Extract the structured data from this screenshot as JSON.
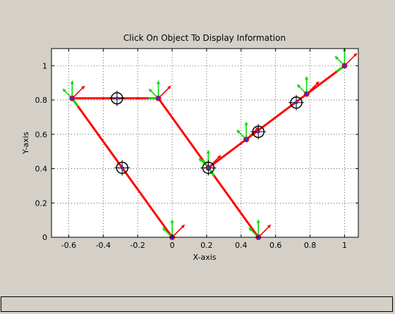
{
  "plot_title": "Click On Object To Display Information",
  "info_text": "",
  "chart_data": {
    "type": "line",
    "title": "Click On Object To Display Information",
    "xlabel": "X-axis",
    "ylabel": "Y-axis",
    "xlim": [
      -0.7,
      1.08
    ],
    "ylim": [
      0,
      1.1
    ],
    "xticks": [
      -0.6,
      -0.4,
      -0.2,
      0,
      0.2,
      0.4,
      0.6,
      0.8,
      1
    ],
    "yticks": [
      0,
      0.2,
      0.4,
      0.6,
      0.8,
      1
    ],
    "xtick_labels": [
      "-0.6",
      "-0.4",
      "-0.2",
      "0",
      "0.2",
      "0.4",
      "0.6",
      "0.8",
      "1"
    ],
    "ytick_labels": [
      "0",
      "0.2",
      "0.4",
      "0.6",
      "0.8",
      "1"
    ],
    "grid": true,
    "links": [
      {
        "from": [
          0,
          0
        ],
        "to": [
          -0.58,
          0.81
        ]
      },
      {
        "from": [
          -0.58,
          0.81
        ],
        "to": [
          -0.08,
          0.81
        ]
      },
      {
        "from": [
          -0.08,
          0.81
        ],
        "to": [
          0.21,
          0.405
        ]
      },
      {
        "from": [
          0.5,
          0
        ],
        "to": [
          0.21,
          0.405
        ]
      },
      {
        "from": [
          0.21,
          0.405
        ],
        "to": [
          1,
          1
        ]
      }
    ],
    "joints": [
      [
        0,
        0
      ],
      [
        -0.58,
        0.81
      ],
      [
        -0.08,
        0.81
      ],
      [
        0.5,
        0
      ],
      [
        0.21,
        0.405
      ],
      [
        0.43,
        0.57
      ],
      [
        0.78,
        0.835
      ],
      [
        1,
        1
      ]
    ],
    "centers_of_mass": [
      [
        -0.29,
        0.405
      ],
      [
        -0.32,
        0.81
      ],
      [
        0.21,
        0.405
      ],
      [
        0.5,
        0.615
      ],
      [
        0.72,
        0.785
      ]
    ],
    "colors": {
      "link": "#ff0000",
      "joint": "#3333cc",
      "frame_x": "#ff0000",
      "frame_y": "#00dd00",
      "com": "#000000"
    }
  }
}
